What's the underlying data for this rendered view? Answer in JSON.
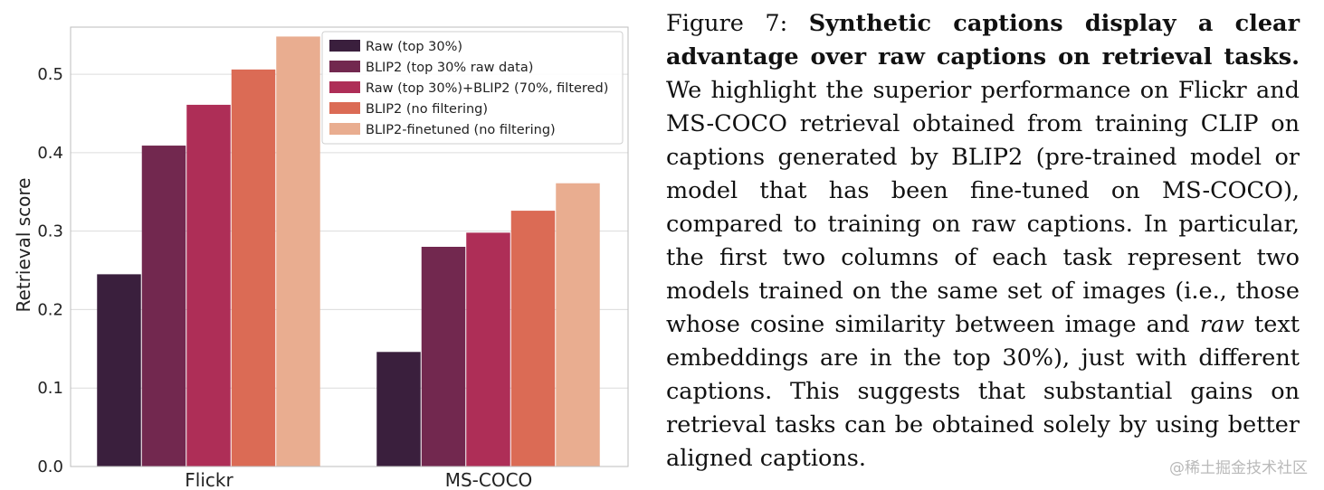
{
  "chart_data": {
    "type": "bar",
    "categories": [
      "Flickr",
      "MS-COCO"
    ],
    "ylabel": "Retrieval score",
    "xlabel": "",
    "ylim": [
      0,
      0.56
    ],
    "yticks": [
      0.0,
      0.1,
      0.2,
      0.3,
      0.4,
      0.5
    ],
    "ytick_labels": [
      "0.0",
      "0.1",
      "0.2",
      "0.3",
      "0.4",
      "0.5"
    ],
    "grid": true,
    "legend_position": "top-right",
    "series": [
      {
        "name": "Raw (top 30%)",
        "color": "#3a1f3d",
        "values": [
          0.245,
          0.146
        ]
      },
      {
        "name": "BLIP2 (top 30% raw data)",
        "color": "#72284f",
        "values": [
          0.409,
          0.28
        ]
      },
      {
        "name": "Raw (top 30%)+BLIP2 (70%, filtered)",
        "color": "#ae2e57",
        "values": [
          0.461,
          0.298
        ]
      },
      {
        "name": "BLIP2 (no filtering)",
        "color": "#db6b55",
        "values": [
          0.506,
          0.326
        ]
      },
      {
        "name": "BLIP2-finetuned (no filtering)",
        "color": "#e9ad90",
        "values": [
          0.548,
          0.361
        ]
      }
    ]
  },
  "caption": {
    "label": "Figure 7:",
    "bold": "Synthetic captions display a clear advantage over raw captions on retrieval tasks.",
    "text_before_em": "We highlight the superior performance on Flickr and MS-COCO retrieval obtained from training CLIP on captions generated by BLIP2 (pre-trained model or model that has been fine-tuned on MS-COCO), compared to training on raw captions. In particular, the first two columns of each task represent two models trained on the same set of images (i.e., those whose cosine similarity between image and",
    "em": "raw",
    "text_after_em": "text embeddings are in the top 30%), just with different captions.  This suggests that substantial gains on retrieval tasks can be obtained solely by using better aligned captions."
  },
  "watermark": "@稀土掘金技术社区"
}
